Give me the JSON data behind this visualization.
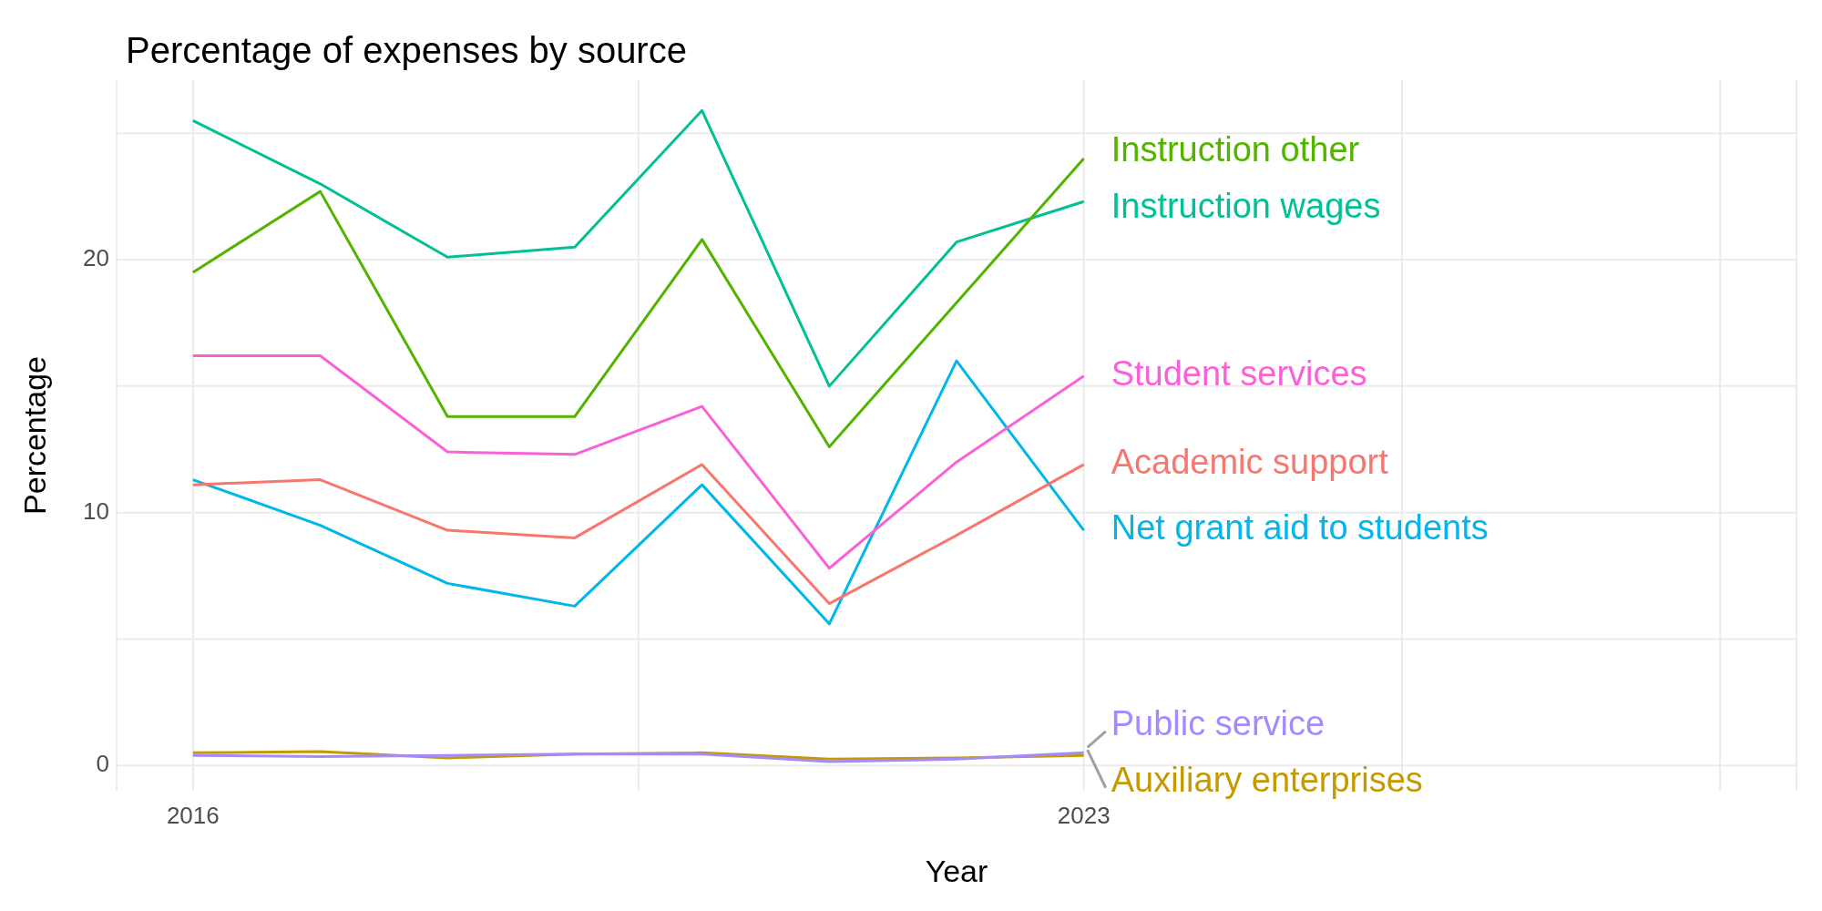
{
  "chart_data": {
    "type": "line",
    "title": "Percentage of expenses by source",
    "xlabel": "Year",
    "ylabel": "Percentage",
    "x": [
      2016,
      2017,
      2018,
      2019,
      2020,
      2021,
      2022,
      2023
    ],
    "series": [
      {
        "name": "Instruction other",
        "color": "#53b400",
        "values": [
          19.5,
          22.7,
          13.8,
          13.8,
          20.8,
          12.6,
          18.3,
          24.0
        ]
      },
      {
        "name": "Instruction wages",
        "color": "#00c094",
        "values": [
          25.5,
          23.0,
          20.1,
          20.5,
          25.9,
          15.0,
          20.7,
          22.3
        ]
      },
      {
        "name": "Student services",
        "color": "#fb61d7",
        "values": [
          16.2,
          16.2,
          12.4,
          12.3,
          14.2,
          7.8,
          12.0,
          15.4
        ]
      },
      {
        "name": "Academic support",
        "color": "#f8766d",
        "values": [
          11.1,
          11.3,
          9.3,
          9.0,
          11.9,
          6.4,
          9.1,
          11.9
        ]
      },
      {
        "name": "Net grant aid to students",
        "color": "#00b6eb",
        "values": [
          11.3,
          9.5,
          7.2,
          6.3,
          11.1,
          5.6,
          16.0,
          9.3
        ]
      },
      {
        "name": "Public service",
        "color": "#a58aff",
        "values": [
          0.4,
          0.35,
          0.4,
          0.45,
          0.45,
          0.15,
          0.25,
          0.5
        ]
      },
      {
        "name": "Auxiliary enterprises",
        "color": "#c49a00",
        "values": [
          0.5,
          0.55,
          0.3,
          0.45,
          0.5,
          0.25,
          0.3,
          0.4
        ]
      }
    ],
    "xlim": [
      2015.4,
      2028.6
    ],
    "xticks": [
      2016,
      {
        "value": 2019.5,
        "label": null
      },
      2023,
      {
        "value": 2025.5,
        "label": null
      },
      {
        "value": 2028,
        "label": null
      }
    ],
    "ylim": [
      -1,
      27.1
    ],
    "yticks": [
      0,
      {
        "value": 5,
        "label": null
      },
      10,
      {
        "value": 15,
        "label": null
      },
      20,
      {
        "value": 25,
        "label": null
      }
    ],
    "grid": true,
    "legend": false,
    "marker": "none",
    "line_style": "solid"
  }
}
